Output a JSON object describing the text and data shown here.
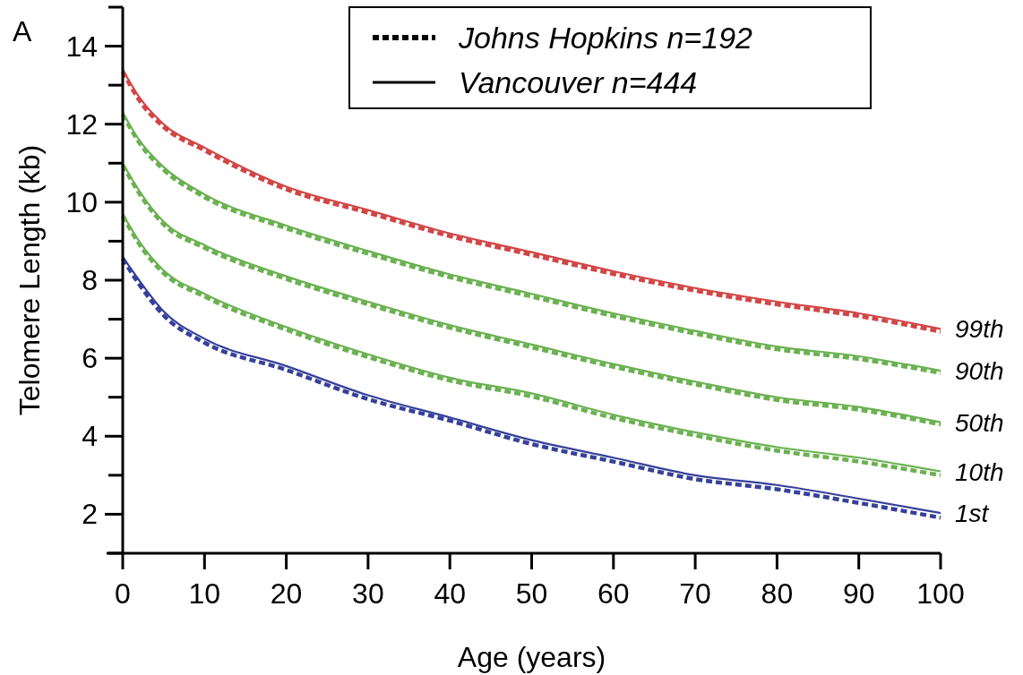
{
  "chart_data": {
    "type": "line",
    "xlabel": "Age (years)",
    "ylabel": "Telomere Length (kb)",
    "x": [
      0,
      2,
      5,
      10,
      20,
      30,
      40,
      50,
      60,
      70,
      80,
      90,
      100
    ],
    "xlim": [
      0,
      100
    ],
    "xticks": [
      0,
      10,
      20,
      30,
      40,
      50,
      60,
      70,
      80,
      90,
      100
    ],
    "ylim": [
      1,
      15
    ],
    "yticks": [
      {
        "value": 1,
        "label": null
      },
      2,
      {
        "value": 3,
        "label": null
      },
      4,
      {
        "value": 5,
        "label": null
      },
      6,
      {
        "value": 7,
        "label": null
      },
      8,
      {
        "value": 9,
        "label": null
      },
      10,
      {
        "value": 11,
        "label": null
      },
      12,
      {
        "value": 13,
        "label": null
      },
      14,
      {
        "value": 15,
        "label": null
      }
    ],
    "grid": false,
    "marker": "none",
    "series": [
      {
        "color": "#d24545",
        "line_style": "dashed",
        "values": [
          13.35,
          12.62,
          11.93,
          11.33,
          10.33,
          9.73,
          9.13,
          8.65,
          8.16,
          7.73,
          7.38,
          7.08,
          6.68
        ]
      },
      {
        "name": "99th",
        "color": "#d24545",
        "line_style": "solid",
        "values": [
          13.4,
          12.7,
          12.0,
          11.4,
          10.4,
          9.8,
          9.2,
          8.72,
          8.23,
          7.8,
          7.45,
          7.15,
          6.75
        ]
      },
      {
        "color": "#6ab150",
        "line_style": "dashed",
        "values": [
          12.25,
          11.53,
          10.83,
          10.13,
          9.33,
          8.68,
          8.08,
          7.58,
          7.08,
          6.63,
          6.23,
          5.98,
          5.62
        ]
      },
      {
        "name": "90th",
        "color": "#6ab150",
        "line_style": "solid",
        "values": [
          12.3,
          11.6,
          10.9,
          10.2,
          9.4,
          8.75,
          8.15,
          7.65,
          7.15,
          6.7,
          6.3,
          6.05,
          5.68
        ]
      },
      {
        "color": "#6ab150",
        "line_style": "dashed",
        "values": [
          10.95,
          10.23,
          9.43,
          8.83,
          8.03,
          7.38,
          6.78,
          6.28,
          5.78,
          5.33,
          4.93,
          4.68,
          4.3
        ]
      },
      {
        "name": "50th",
        "color": "#6ab150",
        "line_style": "solid",
        "values": [
          11.0,
          10.3,
          9.5,
          8.9,
          8.1,
          7.45,
          6.85,
          6.35,
          5.85,
          5.4,
          5.0,
          4.75,
          4.36
        ]
      },
      {
        "color": "#6ab150",
        "line_style": "dashed",
        "values": [
          9.65,
          8.93,
          8.18,
          7.58,
          6.73,
          6.03,
          5.43,
          5.02,
          4.47,
          4.02,
          3.63,
          3.35,
          3.0
        ]
      },
      {
        "name": "10th",
        "color": "#6ab150",
        "line_style": "solid",
        "values": [
          9.7,
          9.0,
          8.25,
          7.65,
          6.8,
          6.1,
          5.5,
          5.1,
          4.55,
          4.1,
          3.72,
          3.45,
          3.1
        ]
      },
      {
        "color": "#36409a",
        "line_style": "dashed",
        "values": [
          8.55,
          7.9,
          7.1,
          6.4,
          5.7,
          4.95,
          4.4,
          3.8,
          3.35,
          2.9,
          2.64,
          2.29,
          1.91
        ]
      },
      {
        "name": "1st",
        "color": "#36409a",
        "line_style": "solid",
        "values": [
          8.6,
          8.0,
          7.2,
          6.5,
          5.8,
          5.05,
          4.48,
          3.9,
          3.45,
          3.0,
          2.75,
          2.4,
          2.03
        ]
      }
    ],
    "annotations": [
      "A",
      "Johns Hopkins n=192",
      "Vancouver n=444"
    ]
  }
}
